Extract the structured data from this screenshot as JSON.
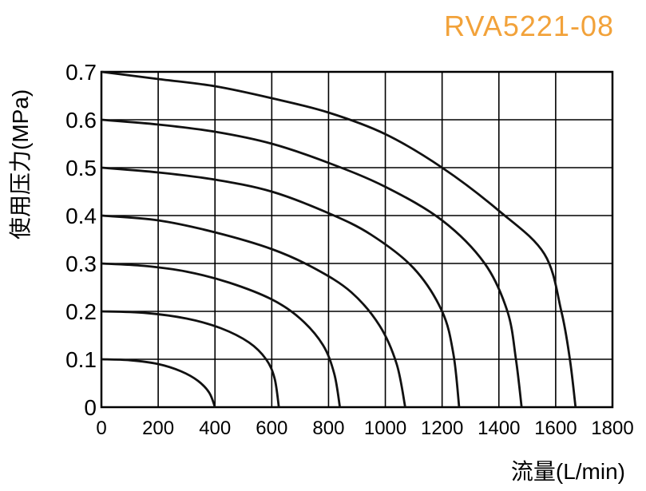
{
  "chart_data": {
    "type": "line",
    "title": "RVA5221-08",
    "title_color": "#f2a23a",
    "xlabel": "流量(L/min)",
    "ylabel": "使用压力(MPa)",
    "xlim": [
      0,
      1800
    ],
    "ylim": [
      0,
      0.7
    ],
    "xticks": [
      0,
      200,
      400,
      600,
      800,
      1000,
      1200,
      1400,
      1600,
      1800
    ],
    "yticks": [
      0,
      0.1,
      0.2,
      0.3,
      0.4,
      0.5,
      0.6,
      0.7
    ],
    "x_tick_labels": [
      "0",
      "200",
      "400",
      "600",
      "800",
      "1000",
      "1200",
      "1400",
      "1600",
      "1800"
    ],
    "y_tick_labels": [
      "0",
      "0.1",
      "0.2",
      "0.3",
      "0.4",
      "0.5",
      "0.6",
      "0.7"
    ],
    "grid": true,
    "line_color": "#111111",
    "series": [
      {
        "pressure": 0.1,
        "points": [
          [
            0,
            0.1
          ],
          [
            100,
            0.098
          ],
          [
            200,
            0.09
          ],
          [
            280,
            0.075
          ],
          [
            340,
            0.055
          ],
          [
            380,
            0.03
          ],
          [
            400,
            0
          ]
        ]
      },
      {
        "pressure": 0.2,
        "points": [
          [
            0,
            0.2
          ],
          [
            150,
            0.197
          ],
          [
            300,
            0.185
          ],
          [
            420,
            0.165
          ],
          [
            520,
            0.135
          ],
          [
            580,
            0.1
          ],
          [
            610,
            0.06
          ],
          [
            625,
            0
          ]
        ]
      },
      {
        "pressure": 0.3,
        "points": [
          [
            0,
            0.3
          ],
          [
            150,
            0.295
          ],
          [
            300,
            0.283
          ],
          [
            450,
            0.26
          ],
          [
            600,
            0.225
          ],
          [
            700,
            0.185
          ],
          [
            780,
            0.13
          ],
          [
            820,
            0.07
          ],
          [
            840,
            0
          ]
        ]
      },
      {
        "pressure": 0.4,
        "points": [
          [
            0,
            0.4
          ],
          [
            200,
            0.39
          ],
          [
            400,
            0.365
          ],
          [
            600,
            0.33
          ],
          [
            750,
            0.29
          ],
          [
            880,
            0.24
          ],
          [
            980,
            0.17
          ],
          [
            1040,
            0.09
          ],
          [
            1070,
            0
          ]
        ]
      },
      {
        "pressure": 0.5,
        "points": [
          [
            0,
            0.5
          ],
          [
            200,
            0.49
          ],
          [
            400,
            0.475
          ],
          [
            600,
            0.45
          ],
          [
            800,
            0.405
          ],
          [
            950,
            0.36
          ],
          [
            1100,
            0.29
          ],
          [
            1200,
            0.2
          ],
          [
            1240,
            0.11
          ],
          [
            1260,
            0
          ]
        ]
      },
      {
        "pressure": 0.6,
        "points": [
          [
            0,
            0.6
          ],
          [
            200,
            0.59
          ],
          [
            400,
            0.575
          ],
          [
            600,
            0.55
          ],
          [
            800,
            0.51
          ],
          [
            1000,
            0.46
          ],
          [
            1200,
            0.39
          ],
          [
            1350,
            0.3
          ],
          [
            1430,
            0.2
          ],
          [
            1460,
            0.1
          ],
          [
            1480,
            0
          ]
        ]
      },
      {
        "pressure": 0.7,
        "points": [
          [
            0,
            0.7
          ],
          [
            200,
            0.685
          ],
          [
            400,
            0.67
          ],
          [
            600,
            0.645
          ],
          [
            800,
            0.615
          ],
          [
            1000,
            0.57
          ],
          [
            1200,
            0.5
          ],
          [
            1400,
            0.41
          ],
          [
            1560,
            0.32
          ],
          [
            1620,
            0.2
          ],
          [
            1650,
            0.1
          ],
          [
            1670,
            0
          ]
        ]
      }
    ]
  }
}
